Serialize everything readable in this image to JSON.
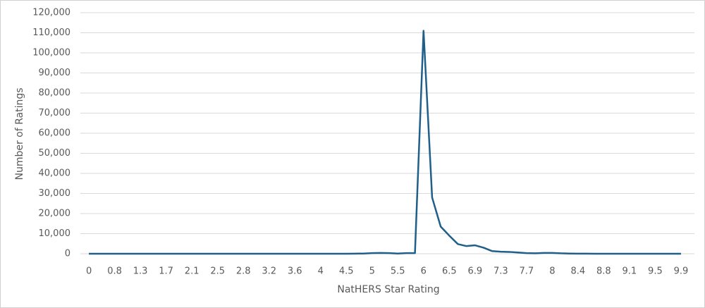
{
  "chart_data": {
    "type": "line",
    "x_label": "NatHERS Star Rating",
    "y_label": "Number of Ratings",
    "categories": [
      "0",
      null,
      null,
      "0.8",
      null,
      null,
      "1.3",
      null,
      null,
      "1.7",
      null,
      null,
      "2.1",
      null,
      null,
      "2.5",
      null,
      null,
      "2.8",
      null,
      null,
      "3.2",
      null,
      null,
      "3.6",
      null,
      null,
      "4",
      null,
      null,
      "4.5",
      null,
      null,
      "5",
      null,
      null,
      "5.5",
      null,
      null,
      "6",
      null,
      null,
      "6.5",
      null,
      null,
      "6.9",
      null,
      null,
      "7.3",
      null,
      null,
      "7.7",
      null,
      null,
      "8",
      null,
      null,
      "8.4",
      null,
      null,
      "8.8",
      null,
      null,
      "9.1",
      null,
      null,
      "9.5",
      null,
      null,
      "9.9"
    ],
    "values": [
      0,
      0,
      0,
      0,
      0,
      0,
      0,
      0,
      0,
      0,
      0,
      0,
      0,
      0,
      0,
      0,
      0,
      0,
      0,
      0,
      0,
      0,
      0,
      0,
      0,
      0,
      0,
      0,
      0,
      0,
      0,
      50,
      100,
      300,
      400,
      300,
      100,
      300,
      300,
      111000,
      28000,
      13500,
      9000,
      4800,
      3800,
      4200,
      3000,
      1300,
      1000,
      900,
      600,
      300,
      200,
      400,
      400,
      200,
      100,
      50,
      50,
      0,
      0,
      0,
      0,
      0,
      0,
      0,
      0,
      0,
      0,
      0
    ],
    "color": "#1f5f8a",
    "ylim": [
      0,
      120000
    ],
    "yticks": [
      0,
      {
        "value": 10000,
        "label": "10,000"
      },
      {
        "value": 20000,
        "label": "20,000"
      },
      {
        "value": 30000,
        "label": "30,000"
      },
      {
        "value": 40000,
        "label": "40,000"
      },
      {
        "value": 50000,
        "label": "50,000"
      },
      {
        "value": 60000,
        "label": "60,000"
      },
      {
        "value": 70000,
        "label": "70,000"
      },
      {
        "value": 80000,
        "label": "80,000"
      },
      {
        "value": 90000,
        "label": "90,000"
      },
      {
        "value": 100000,
        "label": "100,000"
      },
      {
        "value": 110000,
        "label": "110,000"
      },
      {
        "value": 120000,
        "label": "120,000"
      }
    ],
    "grid": true
  }
}
